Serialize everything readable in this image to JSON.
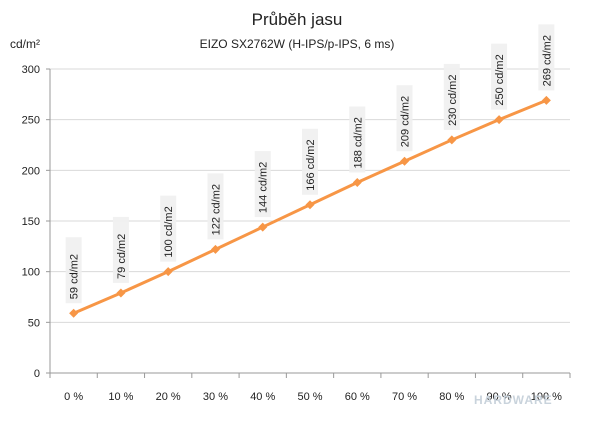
{
  "chart_data": {
    "type": "line",
    "title": "Průběh jasu",
    "subtitle": "EIZO SX2762W (H-IPS/p-IPS, 6 ms)",
    "ylabel": "cd/m²",
    "xlabel": "",
    "ylim": [
      0,
      300
    ],
    "yticks": [
      "0",
      "50",
      "100",
      "150",
      "200",
      "250",
      "300"
    ],
    "categories": [
      "0 %",
      "10 %",
      "20 %",
      "30 %",
      "40 %",
      "50 %",
      "60 %",
      "70 %",
      "80 %",
      "90 %",
      "100 %"
    ],
    "series": [
      {
        "values": [
          59,
          79,
          100,
          122,
          144,
          166,
          188,
          209,
          230,
          250,
          269
        ],
        "labels": [
          "59 cd/m2",
          "79 cd/m2",
          "100 cd/m2",
          "122 cd/m2",
          "144 cd/m2",
          "166 cd/m2",
          "188 cd/m2",
          "209 cd/m2",
          "230 cd/m2",
          "250 cd/m2",
          "269 cd/m2"
        ],
        "color": "#f79646"
      }
    ],
    "grid": true,
    "legend": "none"
  },
  "watermark": {
    "text": "HARDWARE",
    "brand_color": "#c9d3dc"
  }
}
